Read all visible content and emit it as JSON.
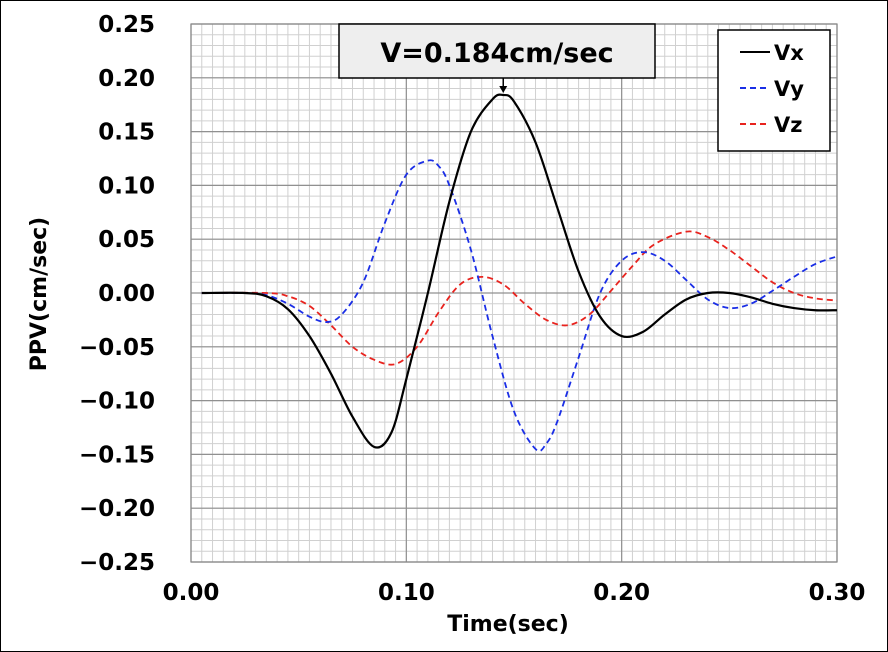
{
  "chart_data": {
    "type": "line",
    "xlabel": "Time(sec)",
    "ylabel": "PPV(cm/sec)",
    "xlim": [
      0,
      0.3
    ],
    "ylim": [
      -0.25,
      0.25
    ],
    "x_ticks": [
      "0.00",
      "0.10",
      "0.20",
      "0.30"
    ],
    "y_ticks": [
      "0.25",
      "0.20",
      "0.15",
      "0.10",
      "0.05",
      "0.00",
      "−0.05",
      "−0.10",
      "−0.15",
      "−0.20",
      "−0.25"
    ],
    "grid": true,
    "legend_position": "top-right",
    "annotation": "V=0.184cm/sec",
    "series": [
      {
        "name": "Vx",
        "color": "#000000",
        "line_style": "solid",
        "points": [
          [
            0.005,
            0
          ],
          [
            0.025,
            0
          ],
          [
            0.035,
            -0.003
          ],
          [
            0.045,
            -0.015
          ],
          [
            0.055,
            -0.04
          ],
          [
            0.065,
            -0.075
          ],
          [
            0.075,
            -0.115
          ],
          [
            0.085,
            -0.143
          ],
          [
            0.093,
            -0.13
          ],
          [
            0.1,
            -0.08
          ],
          [
            0.11,
            0.0
          ],
          [
            0.12,
            0.085
          ],
          [
            0.13,
            0.15
          ],
          [
            0.14,
            0.18
          ],
          [
            0.145,
            0.184
          ],
          [
            0.15,
            0.178
          ],
          [
            0.16,
            0.14
          ],
          [
            0.17,
            0.08
          ],
          [
            0.18,
            0.02
          ],
          [
            0.19,
            -0.022
          ],
          [
            0.2,
            -0.04
          ],
          [
            0.21,
            -0.036
          ],
          [
            0.22,
            -0.02
          ],
          [
            0.23,
            -0.006
          ],
          [
            0.24,
            0.0
          ],
          [
            0.25,
            0.0
          ],
          [
            0.26,
            -0.004
          ],
          [
            0.27,
            -0.01
          ],
          [
            0.28,
            -0.014
          ],
          [
            0.29,
            -0.016
          ],
          [
            0.3,
            -0.016
          ]
        ]
      },
      {
        "name": "Vy",
        "color": "#1a2ee6",
        "line_style": "dashed",
        "points": [
          [
            0.005,
            0
          ],
          [
            0.025,
            0
          ],
          [
            0.035,
            -0.002
          ],
          [
            0.045,
            -0.01
          ],
          [
            0.055,
            -0.022
          ],
          [
            0.063,
            -0.027
          ],
          [
            0.07,
            -0.02
          ],
          [
            0.08,
            0.01
          ],
          [
            0.09,
            0.065
          ],
          [
            0.1,
            0.11
          ],
          [
            0.11,
            0.123
          ],
          [
            0.115,
            0.118
          ],
          [
            0.12,
            0.1
          ],
          [
            0.13,
            0.04
          ],
          [
            0.14,
            -0.04
          ],
          [
            0.15,
            -0.11
          ],
          [
            0.16,
            -0.145
          ],
          [
            0.165,
            -0.14
          ],
          [
            0.17,
            -0.12
          ],
          [
            0.18,
            -0.06
          ],
          [
            0.19,
            0.0
          ],
          [
            0.2,
            0.03
          ],
          [
            0.21,
            0.038
          ],
          [
            0.22,
            0.03
          ],
          [
            0.23,
            0.012
          ],
          [
            0.24,
            -0.006
          ],
          [
            0.25,
            -0.014
          ],
          [
            0.26,
            -0.01
          ],
          [
            0.27,
            0.002
          ],
          [
            0.28,
            0.015
          ],
          [
            0.29,
            0.027
          ],
          [
            0.3,
            0.034
          ]
        ]
      },
      {
        "name": "Vz",
        "color": "#e8231e",
        "line_style": "dashed",
        "points": [
          [
            0.005,
            0
          ],
          [
            0.035,
            0
          ],
          [
            0.045,
            -0.003
          ],
          [
            0.055,
            -0.012
          ],
          [
            0.065,
            -0.03
          ],
          [
            0.075,
            -0.05
          ],
          [
            0.085,
            -0.062
          ],
          [
            0.095,
            -0.066
          ],
          [
            0.105,
            -0.05
          ],
          [
            0.115,
            -0.018
          ],
          [
            0.125,
            0.008
          ],
          [
            0.135,
            0.015
          ],
          [
            0.145,
            0.008
          ],
          [
            0.155,
            -0.01
          ],
          [
            0.165,
            -0.025
          ],
          [
            0.175,
            -0.03
          ],
          [
            0.185,
            -0.02
          ],
          [
            0.195,
            0.002
          ],
          [
            0.205,
            0.025
          ],
          [
            0.215,
            0.045
          ],
          [
            0.23,
            0.057
          ],
          [
            0.24,
            0.052
          ],
          [
            0.25,
            0.04
          ],
          [
            0.26,
            0.025
          ],
          [
            0.27,
            0.01
          ],
          [
            0.28,
            0.0
          ],
          [
            0.29,
            -0.005
          ],
          [
            0.3,
            -0.007
          ]
        ]
      }
    ]
  }
}
